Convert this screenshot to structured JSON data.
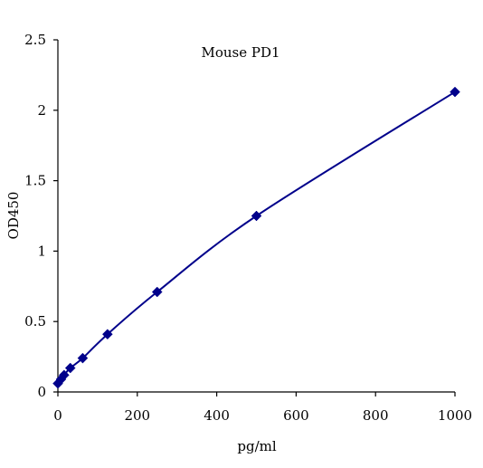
{
  "chart_data": {
    "type": "scatter",
    "title": "Mouse PD1",
    "xlabel": "pg/ml",
    "ylabel": "OD450",
    "xlim": [
      0,
      1000
    ],
    "ylim": [
      0,
      2.5
    ],
    "xticks": [
      0,
      200,
      400,
      600,
      800,
      1000
    ],
    "yticks": [
      0,
      0.5,
      1,
      1.5,
      2,
      2.5
    ],
    "xtick_labels": [
      "0",
      "200",
      "400",
      "600",
      "800",
      "1000"
    ],
    "ytick_labels": [
      "0",
      "0.5",
      "1",
      "1.5",
      "2",
      "2.5"
    ],
    "grid": false,
    "series": [
      {
        "marker": "diamond",
        "trendline": "smooth",
        "color": "#00008B",
        "points": [
          {
            "x": 0,
            "y": 0.06
          },
          {
            "x": 7.8,
            "y": 0.09
          },
          {
            "x": 15.6,
            "y": 0.12
          },
          {
            "x": 31.25,
            "y": 0.17
          },
          {
            "x": 62.5,
            "y": 0.24
          },
          {
            "x": 125,
            "y": 0.41
          },
          {
            "x": 250,
            "y": 0.71
          },
          {
            "x": 500,
            "y": 1.25
          },
          {
            "x": 1000,
            "y": 2.13
          }
        ]
      }
    ]
  }
}
